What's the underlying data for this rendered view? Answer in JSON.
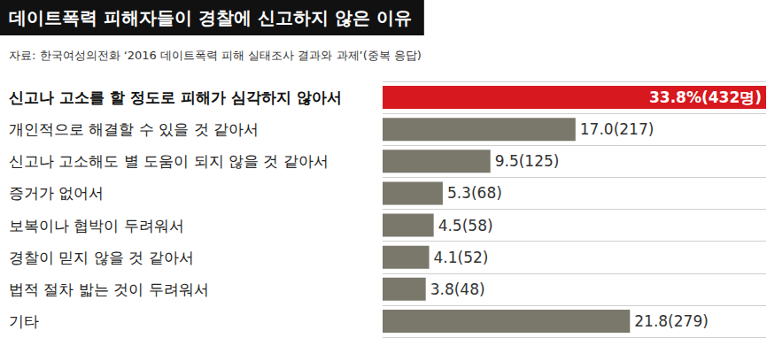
{
  "chart_data": {
    "type": "bar",
    "orientation": "horizontal",
    "title": "데이트폭력 피해자들이 경찰에 신고하지 않은 이유",
    "subtitle": "자료: 한국여성의전화 ‘2016 데이트폭력 피해 실태조사 결과와 과제’(중복 응답)",
    "categories": [
      "신고나 고소를 할 정도로 피해가 심각하지 않아서",
      "개인적으로 해결할 수 있을 것 같아서",
      "신고나 고소해도 별 도움이 되지 않을 것 같아서",
      "증거가 없어서",
      "보복이나 협박이 두려워서",
      "경찰이 믿지 않을 것 같아서",
      "법적 절차 밟는 것이 두려워서",
      "기타"
    ],
    "values": [
      33.8,
      17.0,
      9.5,
      5.3,
      4.5,
      4.1,
      3.8,
      21.8
    ],
    "value_labels": [
      "33.8%(432명)",
      "17.0(217)",
      "9.5(125)",
      "5.3(68)",
      "4.5(58)",
      "4.1(52)",
      "3.8(48)",
      "21.8(279)"
    ],
    "colors": [
      "#d7191f",
      "#7a776b",
      "#7a776b",
      "#7a776b",
      "#7a776b",
      "#7a776b",
      "#7a776b",
      "#7a776b"
    ],
    "xlim": [
      0,
      33.8
    ],
    "data_labels": true,
    "tick_labels": false,
    "grid": true
  }
}
